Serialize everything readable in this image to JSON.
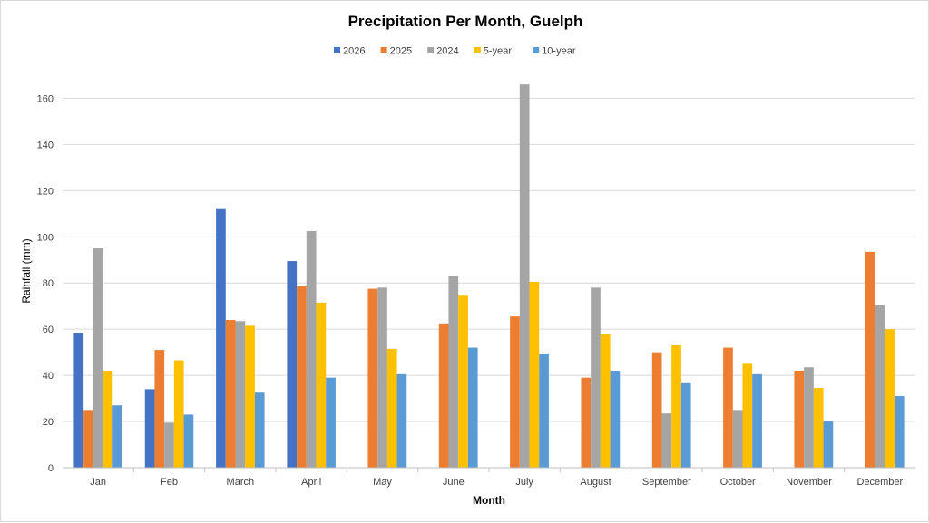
{
  "chart_data": {
    "type": "bar",
    "title": "Precipitation Per Month, Guelph",
    "xlabel": "Month",
    "ylabel": "Rainfall (mm)",
    "ylim": [
      0,
      170
    ],
    "yticks": [
      0,
      20,
      40,
      60,
      80,
      100,
      120,
      140,
      160
    ],
    "grid": true,
    "legend_position": "top",
    "categories": [
      "Jan",
      "Feb",
      "March",
      "April",
      "May",
      "June",
      "July",
      "August",
      "September",
      "October",
      "November",
      "December"
    ],
    "series": [
      {
        "name": "2026",
        "color": "#4472c4",
        "values": [
          58.5,
          34,
          112,
          89.5,
          null,
          null,
          null,
          null,
          null,
          null,
          null,
          null
        ]
      },
      {
        "name": "2025",
        "color": "#ed7d31",
        "values": [
          25,
          51,
          64,
          78.5,
          77.5,
          62.5,
          65.5,
          39,
          50,
          52,
          42,
          93.5
        ]
      },
      {
        "name": "2024",
        "color": "#a5a5a5",
        "values": [
          95,
          19.5,
          63.5,
          102.5,
          78,
          83,
          166,
          78,
          23.5,
          25,
          43.5,
          70.5
        ]
      },
      {
        "name": "5-year",
        "color": "#ffc000",
        "values": [
          42,
          46.5,
          61.5,
          71.5,
          51.5,
          74.5,
          80.5,
          58,
          53,
          45,
          34.5,
          60
        ]
      },
      {
        "name": "10-year",
        "color": "#5b9bd5",
        "values": [
          27,
          23,
          32.5,
          39,
          40.5,
          52,
          49.5,
          42,
          37,
          40.5,
          20,
          31
        ]
      }
    ]
  }
}
